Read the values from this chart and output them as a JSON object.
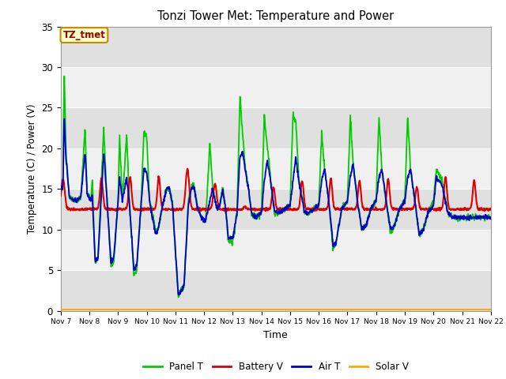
{
  "title": "Tonzi Tower Met: Temperature and Power",
  "xlabel": "Time",
  "ylabel": "Temperature (C) / Power (V)",
  "ylim": [
    0,
    35
  ],
  "annotation": "TZ_tmet",
  "bg_color": "#e8e8e8",
  "bg_band_light": "#f0f0f0",
  "bg_band_dark": "#e0e0e0",
  "fig_color": "#ffffff",
  "grid_color": "#ffffff",
  "xtick_labels": [
    "Nov 7",
    "Nov 8",
    "Nov 9",
    "Nov 10",
    "Nov 11",
    "Nov 12",
    "Nov 13",
    "Nov 14",
    "Nov 15",
    "Nov 16",
    "Nov 17",
    "Nov 18",
    "Nov 19",
    "Nov 20",
    "Nov 21",
    "Nov 22"
  ],
  "series": {
    "panel_t": {
      "color": "#00cc00",
      "label": "Panel T",
      "lw": 1.3
    },
    "battery_v": {
      "color": "#dd0000",
      "label": "Battery V",
      "lw": 1.5
    },
    "air_t": {
      "color": "#0000cc",
      "label": "Air T",
      "lw": 1.3
    },
    "solar_v": {
      "color": "#ffaa00",
      "label": "Solar V",
      "lw": 1.5
    }
  }
}
